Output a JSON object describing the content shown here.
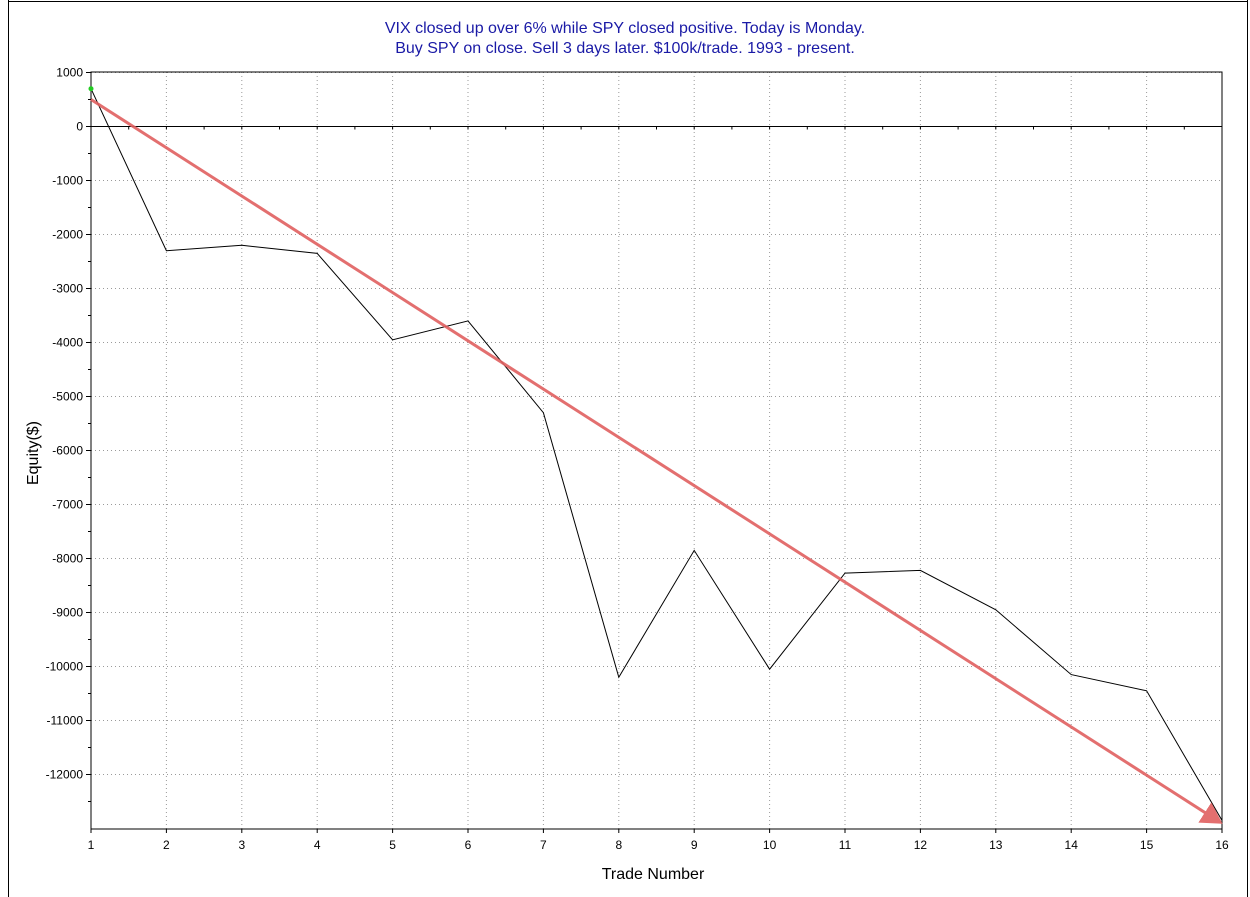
{
  "chart_data": {
    "type": "line",
    "title_lines": [
      "VIX closed up over 6% while SPY closed positive. Today is Monday.",
      "Buy SPY on close. Sell 3 days later. $100k/trade. 1993 - present."
    ],
    "xlabel": "Trade Number",
    "ylabel": "Equity($)",
    "xlim": [
      1,
      16
    ],
    "ylim": [
      -13000,
      1000
    ],
    "x_ticks": [
      1,
      2,
      3,
      4,
      5,
      6,
      7,
      8,
      9,
      10,
      11,
      12,
      13,
      14,
      15,
      16
    ],
    "y_ticks": [
      1000,
      0,
      -1000,
      -2000,
      -3000,
      -4000,
      -5000,
      -6000,
      -7000,
      -8000,
      -9000,
      -10000,
      -11000,
      -12000
    ],
    "grid": true,
    "series": [
      {
        "x": [
          1,
          2,
          3,
          4,
          5,
          6,
          7,
          8,
          9,
          10,
          11,
          12,
          13,
          14,
          15,
          16
        ],
        "values": [
          700,
          -2300,
          -2200,
          -2350,
          -3950,
          -3600,
          -5300,
          -10200,
          -7850,
          -10050,
          -8270,
          -8220,
          -8950,
          -10150,
          -10450,
          -12850
        ],
        "color": "#000000"
      }
    ],
    "start_marker_color": "#22cc22",
    "trend_arrow": {
      "from": [
        1,
        500
      ],
      "to": [
        16,
        -12920
      ],
      "color": "#e06060"
    }
  }
}
